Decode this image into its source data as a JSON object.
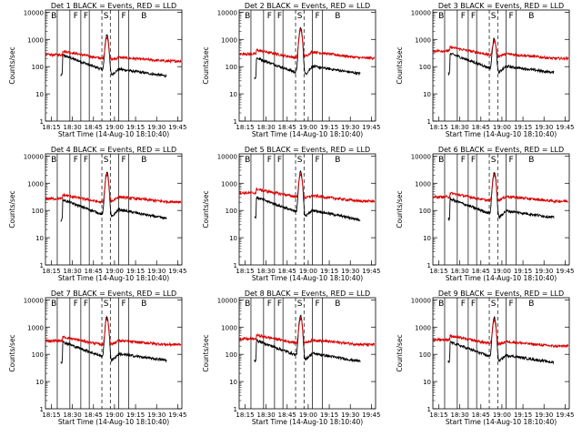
{
  "figure": {
    "description": "Detector count-rate light curves"
  },
  "chart_data": {
    "type": "line",
    "layout": "3x3 grid",
    "x_ticks": [
      "18:15",
      "18:30",
      "18:45",
      "19:00",
      "19:15",
      "19:30",
      "19:45"
    ],
    "x_tick_hours": [
      18.25,
      18.5,
      18.75,
      19.0,
      19.25,
      19.5,
      19.75
    ],
    "xlim_hours": [
      18.18,
      19.8
    ],
    "ylim": [
      1,
      12000
    ],
    "y_scale": "log",
    "y_ticks": [
      "1",
      "10",
      "100",
      "1000",
      "10000"
    ],
    "y_tick_values": [
      1,
      10,
      100,
      1000,
      10000
    ],
    "ylabel": "Counts/sec",
    "xlabel": "Start Time (14-Aug-10 18:10:40)",
    "series_names": [
      "Events",
      "LLD"
    ],
    "series_colors": {
      "Events": "#000000",
      "LLD": "#dd0000"
    },
    "region_labels": [
      "B",
      "F",
      "F",
      "S",
      "F",
      "B"
    ],
    "vertical_lines_hours": [
      18.47,
      18.6,
      18.7,
      18.85,
      18.95,
      19.05,
      19.17
    ],
    "dashed_lines_hours": [
      18.85,
      18.95
    ],
    "panels": [
      {
        "title": "Det  1  BLACK = Events, RED = LLD",
        "flare_peak": {
          "Events": 1500,
          "LLD": 1200
        },
        "pre_flare": {
          "Events": 140,
          "LLD": 260
        },
        "post_flare": {
          "Events": 75,
          "LLD": 200
        },
        "end": {
          "Events": 45,
          "LLD": 160
        }
      },
      {
        "title": "Det  2  BLACK = Events, RED = LLD",
        "flare_peak": {
          "Events": 2600,
          "LLD": 2200
        },
        "pre_flare": {
          "Events": 110,
          "LLD": 280
        },
        "post_flare": {
          "Events": 95,
          "LLD": 320
        },
        "end": {
          "Events": 55,
          "LLD": 210
        }
      },
      {
        "title": "Det  3  BLACK = Events, RED = LLD",
        "flare_peak": {
          "Events": 1100,
          "LLD": 900
        },
        "pre_flare": {
          "Events": 160,
          "LLD": 360
        },
        "post_flare": {
          "Events": 95,
          "LLD": 270
        },
        "end": {
          "Events": 60,
          "LLD": 200
        }
      },
      {
        "title": "Det  4  BLACK = Events, RED = LLD",
        "flare_peak": {
          "Events": 2500,
          "LLD": 2100
        },
        "pre_flare": {
          "Events": 130,
          "LLD": 260
        },
        "post_flare": {
          "Events": 100,
          "LLD": 290
        },
        "end": {
          "Events": 50,
          "LLD": 210
        }
      },
      {
        "title": "Det  5  BLACK = Events, RED = LLD",
        "flare_peak": {
          "Events": 2600,
          "LLD": 2200
        },
        "pre_flare": {
          "Events": 160,
          "LLD": 420
        },
        "post_flare": {
          "Events": 95,
          "LLD": 320
        },
        "end": {
          "Events": 45,
          "LLD": 220
        }
      },
      {
        "title": "Det  6  BLACK = Events, RED = LLD",
        "flare_peak": {
          "Events": 2500,
          "LLD": 2100
        },
        "pre_flare": {
          "Events": 140,
          "LLD": 300
        },
        "post_flare": {
          "Events": 90,
          "LLD": 300
        },
        "end": {
          "Events": 55,
          "LLD": 220
        }
      },
      {
        "title": "Det  7  BLACK = Events, RED = LLD",
        "flare_peak": {
          "Events": 2400,
          "LLD": 2000
        },
        "pre_flare": {
          "Events": 150,
          "LLD": 300
        },
        "post_flare": {
          "Events": 95,
          "LLD": 290
        },
        "end": {
          "Events": 60,
          "LLD": 230
        }
      },
      {
        "title": "Det  8  BLACK = Events, RED = LLD",
        "flare_peak": {
          "Events": 2500,
          "LLD": 2100
        },
        "pre_flare": {
          "Events": 170,
          "LLD": 350
        },
        "post_flare": {
          "Events": 100,
          "LLD": 310
        },
        "end": {
          "Events": 55,
          "LLD": 230
        }
      },
      {
        "title": "Det  9  BLACK = Events, RED = LLD",
        "flare_peak": {
          "Events": 2200,
          "LLD": 1800
        },
        "pre_flare": {
          "Events": 150,
          "LLD": 330
        },
        "post_flare": {
          "Events": 85,
          "LLD": 270
        },
        "end": {
          "Events": 50,
          "LLD": 200
        }
      }
    ]
  }
}
